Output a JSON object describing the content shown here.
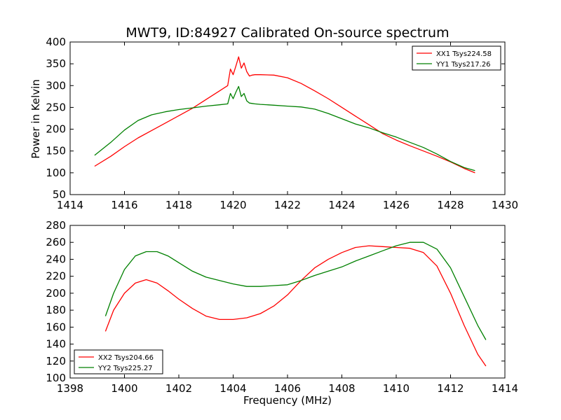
{
  "figure": {
    "title": "MWT9, ID:84927 Calibrated On-source spectrum",
    "ylabel": "Power in Kelvin",
    "xlabel": "Frequency (MHz)"
  },
  "chart_data": [
    {
      "type": "line",
      "title": "MWT9, ID:84927 Calibrated On-source spectrum",
      "xlabel": "",
      "ylabel": "Power in Kelvin",
      "xlim": [
        1414,
        1430
      ],
      "ylim": [
        50,
        400
      ],
      "xticks": [
        1414,
        1416,
        1418,
        1420,
        1422,
        1424,
        1426,
        1428,
        1430
      ],
      "yticks": [
        50,
        100,
        150,
        200,
        250,
        300,
        350,
        400
      ],
      "grid": false,
      "legend_position": "top-right",
      "series": [
        {
          "name": "XX1 Tsys224.58",
          "color": "#ff0000",
          "x": [
            1414.9,
            1415.5,
            1416,
            1416.5,
            1417,
            1417.5,
            1418,
            1418.5,
            1419,
            1419.5,
            1419.8,
            1419.9,
            1420.0,
            1420.1,
            1420.2,
            1420.3,
            1420.4,
            1420.5,
            1420.6,
            1420.7,
            1420.8,
            1421,
            1421.5,
            1422,
            1422.5,
            1423,
            1423.5,
            1424,
            1424.5,
            1425,
            1425.5,
            1426,
            1426.5,
            1427,
            1427.5,
            1428,
            1428.5,
            1428.9
          ],
          "y": [
            115,
            138,
            160,
            180,
            197,
            214,
            231,
            248,
            268,
            288,
            300,
            338,
            325,
            345,
            366,
            340,
            352,
            332,
            322,
            324,
            325,
            325,
            324,
            318,
            305,
            288,
            270,
            250,
            230,
            210,
            190,
            175,
            162,
            150,
            138,
            125,
            110,
            100
          ]
        },
        {
          "name": "YY1 Tsys217.26",
          "color": "#008000",
          "x": [
            1414.9,
            1415.5,
            1416,
            1416.5,
            1417,
            1417.5,
            1418,
            1418.5,
            1419,
            1419.5,
            1419.8,
            1419.9,
            1420.0,
            1420.1,
            1420.2,
            1420.3,
            1420.4,
            1420.5,
            1420.6,
            1420.7,
            1420.8,
            1421,
            1421.5,
            1422,
            1422.5,
            1423,
            1423.5,
            1424,
            1424.5,
            1425,
            1425.5,
            1426,
            1426.5,
            1427,
            1427.5,
            1428,
            1428.5,
            1428.9
          ],
          "y": [
            140,
            170,
            198,
            220,
            233,
            240,
            245,
            249,
            253,
            256,
            258,
            282,
            270,
            285,
            298,
            275,
            282,
            265,
            260,
            259,
            258,
            257,
            255,
            253,
            251,
            246,
            236,
            224,
            212,
            203,
            192,
            182,
            170,
            158,
            143,
            126,
            112,
            105
          ]
        }
      ]
    },
    {
      "type": "line",
      "title": "",
      "xlabel": "Frequency (MHz)",
      "ylabel": "",
      "xlim": [
        1398,
        1414
      ],
      "ylim": [
        100,
        280
      ],
      "xticks": [
        1398,
        1400,
        1402,
        1404,
        1406,
        1408,
        1410,
        1412,
        1414
      ],
      "yticks": [
        100,
        120,
        140,
        160,
        180,
        200,
        220,
        240,
        260,
        280
      ],
      "grid": false,
      "legend_position": "bottom-left",
      "series": [
        {
          "name": "XX2 Tsys204.66",
          "color": "#ff0000",
          "x": [
            1399.3,
            1399.6,
            1400,
            1400.4,
            1400.8,
            1401.2,
            1401.6,
            1402,
            1402.5,
            1403,
            1403.5,
            1404,
            1404.5,
            1405,
            1405.5,
            1406,
            1406.5,
            1407,
            1407.5,
            1408,
            1408.5,
            1409,
            1409.5,
            1410,
            1410.5,
            1411,
            1411.5,
            1412,
            1412.5,
            1413,
            1413.3
          ],
          "y": [
            155,
            180,
            200,
            212,
            216,
            212,
            203,
            193,
            182,
            173,
            169,
            169,
            171,
            176,
            185,
            198,
            215,
            230,
            240,
            248,
            254,
            256,
            255,
            254,
            253,
            248,
            232,
            200,
            162,
            128,
            114
          ]
        },
        {
          "name": "YY2 Tsys225.27",
          "color": "#008000",
          "x": [
            1399.3,
            1399.6,
            1400,
            1400.4,
            1400.8,
            1401.2,
            1401.6,
            1402,
            1402.5,
            1403,
            1403.5,
            1404,
            1404.5,
            1405,
            1405.5,
            1406,
            1406.5,
            1407,
            1407.5,
            1408,
            1408.5,
            1409,
            1409.5,
            1410,
            1410.5,
            1411,
            1411.5,
            1412,
            1412.5,
            1413,
            1413.3
          ],
          "y": [
            173,
            200,
            228,
            244,
            249,
            249,
            244,
            236,
            226,
            219,
            215,
            211,
            208,
            208,
            209,
            210,
            215,
            221,
            226,
            231,
            238,
            244,
            250,
            256,
            260,
            260,
            252,
            230,
            196,
            162,
            145
          ]
        }
      ]
    }
  ]
}
